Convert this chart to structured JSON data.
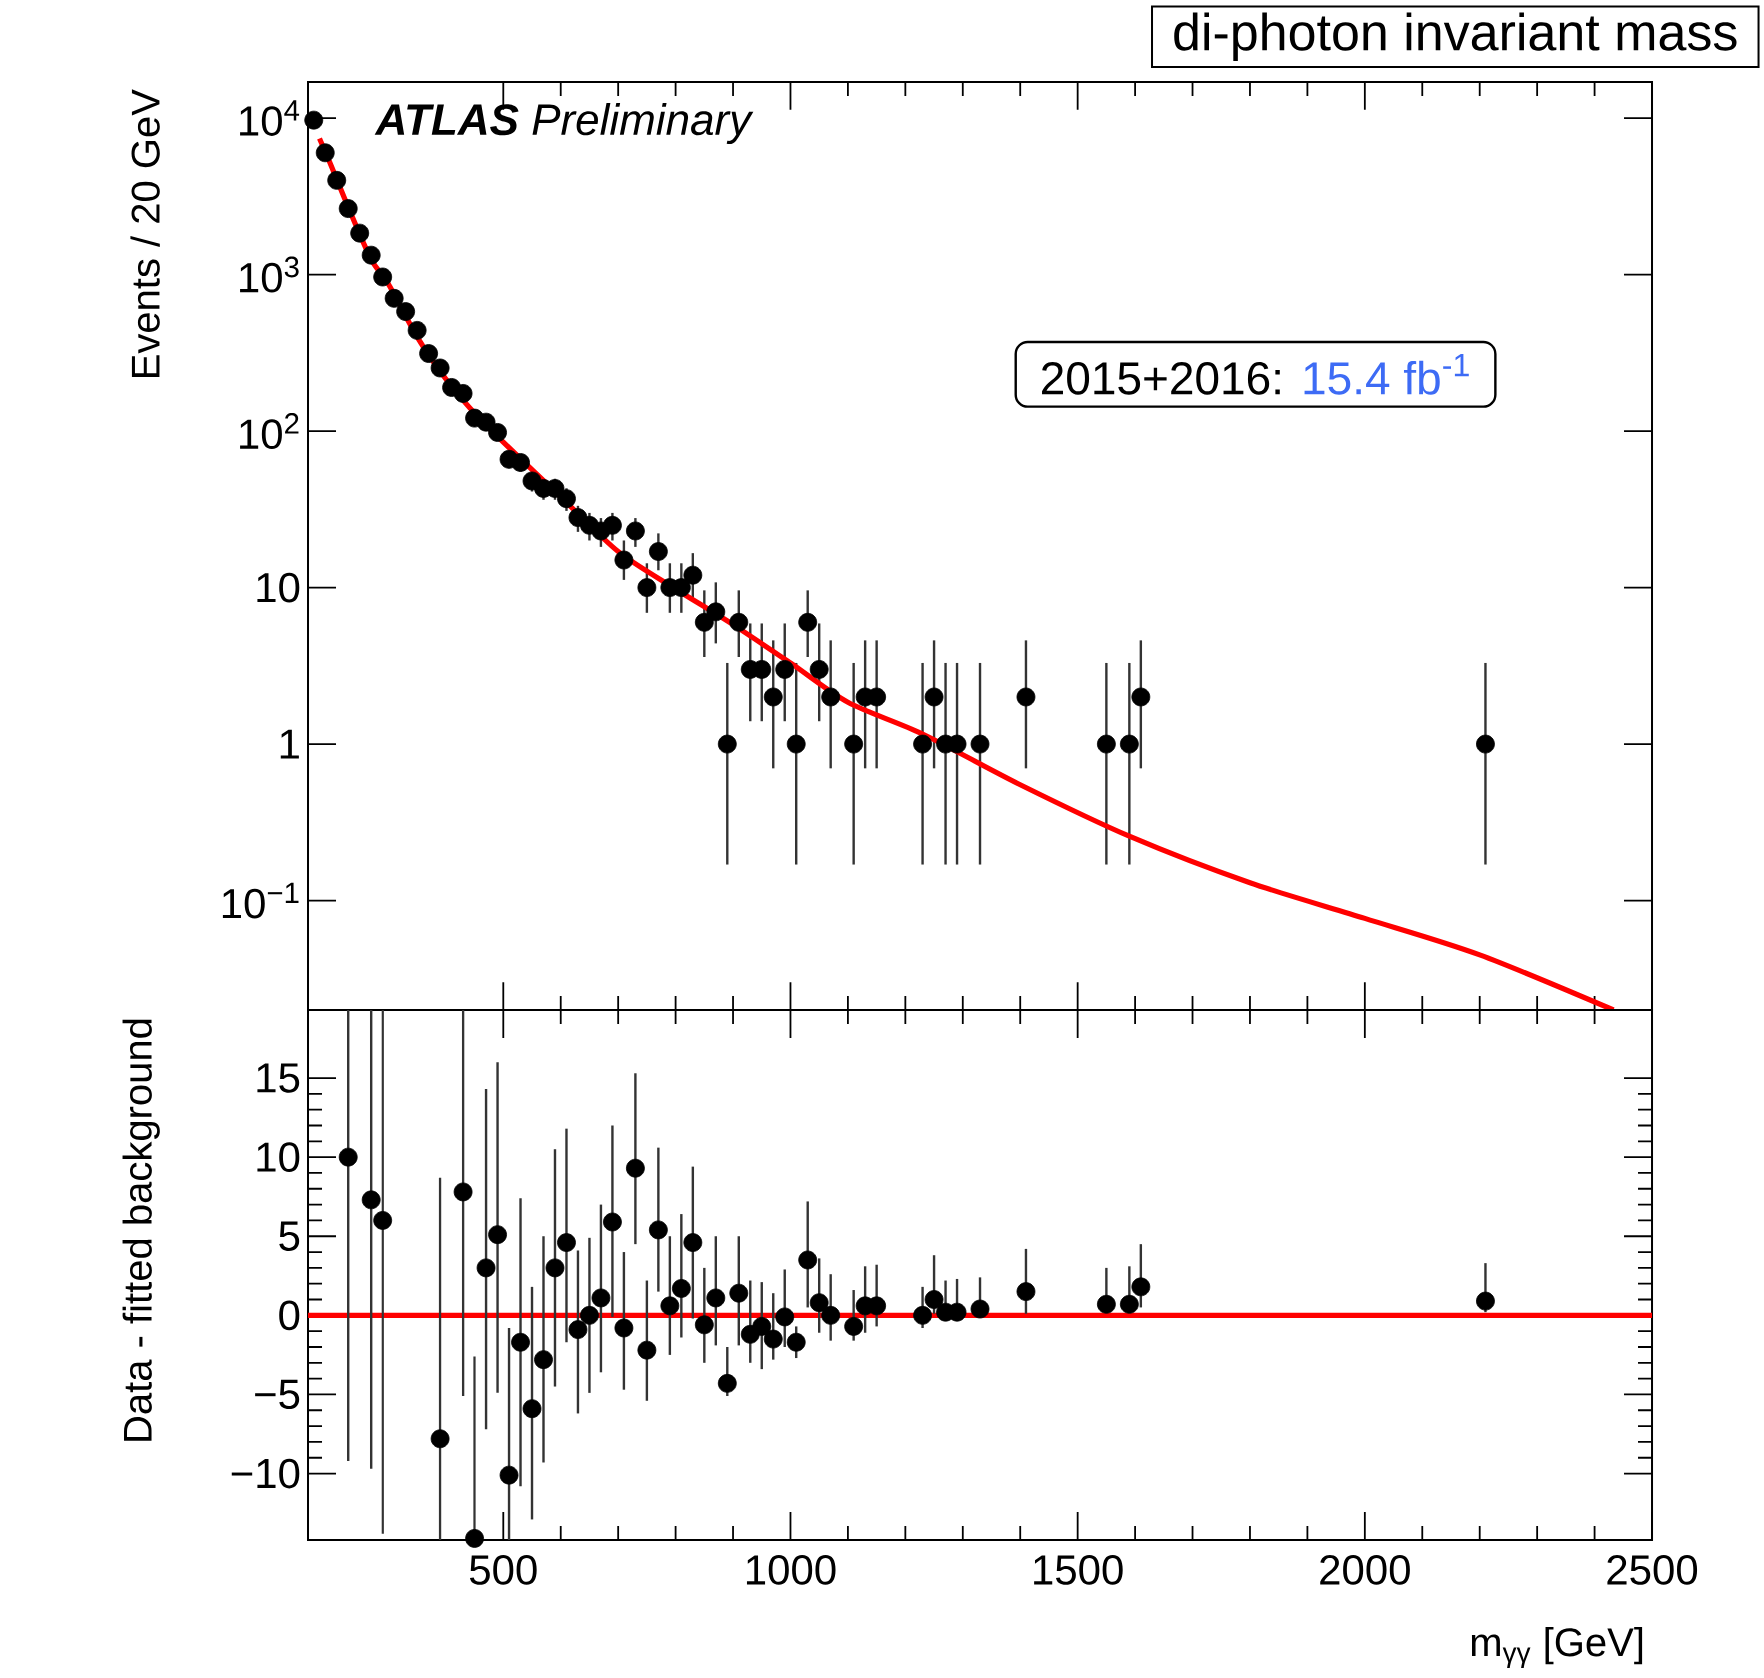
{
  "chart_data": [
    {
      "type": "scatter",
      "title": "di-photon invariant mass",
      "ylabel": "Events / 20 GeV",
      "log": true,
      "tick_labels": "y",
      "xlim": [
        160,
        2500
      ],
      "xticks": [
        500,
        1000,
        1500,
        2000,
        2500
      ],
      "ylim": [
        0.02,
        17000
      ],
      "yticks": [
        {
          "value": 0.1,
          "label": "10$^{−1}$"
        },
        1,
        10,
        {
          "value": 100,
          "label": "10$^{2}$"
        },
        {
          "value": 1000,
          "label": "10$^{3}$"
        },
        {
          "value": 10000,
          "label": "10$^{4}$"
        }
      ],
      "annotations": [
        "**ATLAS** Preliminary",
        "2015+2016:",
        "15.4 fb$^{-1}$"
      ],
      "series": [
        {
          "color": "#000000",
          "marker": "circle",
          "x": [
            170,
            190,
            210,
            230,
            250,
            270,
            290,
            310,
            330,
            350,
            370,
            390,
            410,
            430,
            450,
            470,
            490,
            510,
            530,
            550,
            570,
            590,
            610,
            630,
            650,
            670,
            690,
            710,
            730,
            750,
            770,
            790,
            810,
            830,
            850,
            870,
            890,
            910,
            930,
            950,
            970,
            990,
            1010,
            1030,
            1050,
            1070,
            1110,
            1130,
            1150,
            1230,
            1250,
            1270,
            1290,
            1330,
            1410,
            1550,
            1590,
            1610,
            2210
          ],
          "values": [
            9700,
            6000,
            4000,
            2640,
            1840,
            1330,
            965,
            705,
            580,
            440,
            313,
            253,
            190,
            174,
            121,
            114,
            98,
            66,
            63,
            48,
            43,
            43,
            37,
            28,
            25,
            23,
            25,
            15,
            23,
            10,
            17,
            10,
            10,
            12,
            6,
            7,
            1,
            6,
            3,
            3,
            2,
            3,
            1,
            6,
            3,
            2,
            1,
            2,
            2,
            1,
            2,
            1,
            1,
            1,
            2,
            1,
            1,
            2,
            1
          ],
          "errors": [
            null,
            null,
            null,
            null,
            null,
            null,
            null,
            null,
            null,
            null,
            null,
            null,
            null,
            null,
            null,
            null,
            [
              88.1,
              107.9
            ],
            [
              57.9,
              74.1
            ],
            [
              55.1,
              70.9
            ],
            [
              41.1,
              54.9
            ],
            [
              36.4,
              49.6
            ],
            [
              36.4,
              49.6
            ],
            [
              30.9,
              43.1
            ],
            [
              22.7,
              33.3
            ],
            [
              20,
              30
            ],
            [
              18.2,
              27.8
            ],
            [
              20,
              30
            ],
            [
              11.2,
              20
            ],
            [
              18.2,
              27.8
            ],
            [
              6.9,
              14.3
            ],
            [
              12.9,
              22.2
            ],
            [
              6.9,
              14.3
            ],
            [
              6.9,
              14.3
            ],
            [
              8.6,
              16.6
            ],
            [
              3.6,
              9.6
            ],
            [
              4.4,
              10.8
            ],
            [
              0.17,
              3.3
            ],
            [
              3.6,
              9.6
            ],
            [
              1.4,
              5.9
            ],
            [
              1.4,
              5.9
            ],
            [
              0.7,
              4.6
            ],
            [
              1.4,
              5.9
            ],
            [
              0.17,
              3.3
            ],
            [
              3.6,
              9.6
            ],
            [
              1.4,
              5.9
            ],
            [
              0.7,
              4.6
            ],
            [
              0.17,
              3.3
            ],
            [
              0.7,
              4.6
            ],
            [
              0.7,
              4.6
            ],
            [
              0.17,
              3.3
            ],
            [
              0.7,
              4.6
            ],
            [
              0.17,
              3.3
            ],
            [
              0.17,
              3.3
            ],
            [
              0.17,
              3.3
            ],
            [
              0.7,
              4.6
            ],
            [
              0.17,
              3.3
            ],
            [
              0.17,
              3.3
            ],
            [
              0.7,
              4.6
            ],
            [
              0.17,
              3.3
            ]
          ]
        },
        {
          "type": "line",
          "color": "#ff0000",
          "marker": "none",
          "x": [
            180,
            200,
            230,
            270,
            300,
            350,
            400,
            450,
            500,
            600,
            700,
            800,
            900,
            1000,
            1100,
            1230,
            1400,
            1593,
            1800,
            2000,
            2200,
            2433
          ],
          "values": [
            7400,
            5000,
            2700,
            1250,
            870,
            400,
            215,
            130,
            85,
            38,
            17,
            9.8,
            5.8,
            3.3,
            1.85,
            1.16,
            0.55,
            0.255,
            0.13,
            0.077,
            0.045,
            0.02
          ]
        }
      ]
    },
    {
      "type": "scatter",
      "xlabel": "m$_{γγ}$ [GeV]",
      "ylabel": "Data - fitted background",
      "xlim": [
        160,
        2500
      ],
      "xticks": [
        500,
        1000,
        1500,
        2000,
        2500
      ],
      "ylim": [
        -14.2,
        19.3
      ],
      "yticks": [
        {
          "value": -10,
          "label": "−10"
        },
        {
          "value": -5,
          "label": "−5"
        },
        0,
        5,
        10,
        15
      ],
      "ref_lines": [
        {
          "axis": "y",
          "value": 0,
          "color": "#ff0000"
        }
      ],
      "series": [
        {
          "color": "#000000",
          "marker": "circle",
          "x": [
            230,
            270,
            290,
            390,
            430,
            450,
            470,
            490,
            510,
            530,
            550,
            570,
            590,
            610,
            630,
            650,
            670,
            690,
            710,
            730,
            750,
            770,
            790,
            810,
            830,
            850,
            870,
            890,
            910,
            930,
            950,
            970,
            990,
            1010,
            1030,
            1050,
            1070,
            1110,
            1130,
            1150,
            1230,
            1250,
            1270,
            1290,
            1330,
            1410,
            1550,
            1590,
            1610,
            2210
          ],
          "values": [
            10.0,
            7.3,
            6.0,
            -7.8,
            7.8,
            -14.1,
            3.0,
            5.1,
            -10.1,
            -1.7,
            -5.9,
            -2.8,
            3.0,
            4.6,
            -0.9,
            0,
            1.1,
            5.9,
            -0.8,
            9.3,
            -2.2,
            5.4,
            0.6,
            1.7,
            4.6,
            -0.6,
            1.1,
            -4.3,
            1.4,
            -1.2,
            -0.7,
            -1.5,
            -0.1,
            -1.7,
            3.5,
            0.8,
            0,
            -0.7,
            0.6,
            0.6,
            0,
            1.0,
            0.2,
            0.2,
            0.4,
            1.5,
            0.7,
            0.7,
            1.8,
            0.9
          ],
          "errors": [
            [
              -9.2,
              19.3
            ],
            [
              -9.7,
              19.3
            ],
            [
              -13.8,
              19.3
            ],
            [
              -14.2,
              8.7
            ],
            [
              -5.1,
              19.3
            ],
            [
              -14.2,
              -2.6
            ],
            [
              -7.2,
              14.3
            ],
            [
              -4.9,
              16.0
            ],
            [
              -14.2,
              -0.8
            ],
            [
              -10.8,
              7.4
            ],
            [
              -12.9,
              1.8
            ],
            [
              -9.3,
              5.0
            ],
            [
              -4.5,
              10.5
            ],
            [
              -1.7,
              11.8
            ],
            [
              -6.2,
              4.1
            ],
            [
              -4.9,
              4.9
            ],
            [
              -3.6,
              7.0
            ],
            [
              -0.1,
              12.0
            ],
            [
              -4.7,
              4.0
            ],
            [
              4.5,
              15.3
            ],
            [
              -5.4,
              2.2
            ],
            [
              1.5,
              10.6
            ],
            [
              -2.5,
              5.0
            ],
            [
              -1.4,
              6.4
            ],
            [
              -0.2,
              9.4
            ],
            [
              -3.0,
              3.0
            ],
            [
              -1.9,
              5.0
            ],
            [
              -5.1,
              -2.0
            ],
            [
              -1.9,
              5.0
            ],
            [
              -3.0,
              2.2
            ],
            [
              -3.4,
              2.1
            ],
            [
              -2.8,
              1.4
            ],
            [
              -2.0,
              2.9
            ],
            [
              -2.7,
              -0.7
            ],
            [
              0.5,
              7.2
            ],
            [
              -1.1,
              3.6
            ],
            [
              -1.6,
              2.6
            ],
            [
              -1.6,
              1.6
            ],
            [
              -1.1,
              3.1
            ],
            [
              -0.7,
              3.2
            ],
            [
              -0.8,
              1.8
            ],
            [
              0.1,
              3.8
            ],
            [
              -0.3,
              2.2
            ],
            [
              -0.3,
              2.3
            ],
            [
              -0.1,
              2.4
            ],
            [
              0.1,
              4.2
            ],
            [
              0.5,
              3.0
            ],
            [
              0.6,
              3.1
            ],
            [
              0.5,
              4.5
            ],
            [
              0.2,
              3.3
            ]
          ]
        }
      ]
    }
  ]
}
